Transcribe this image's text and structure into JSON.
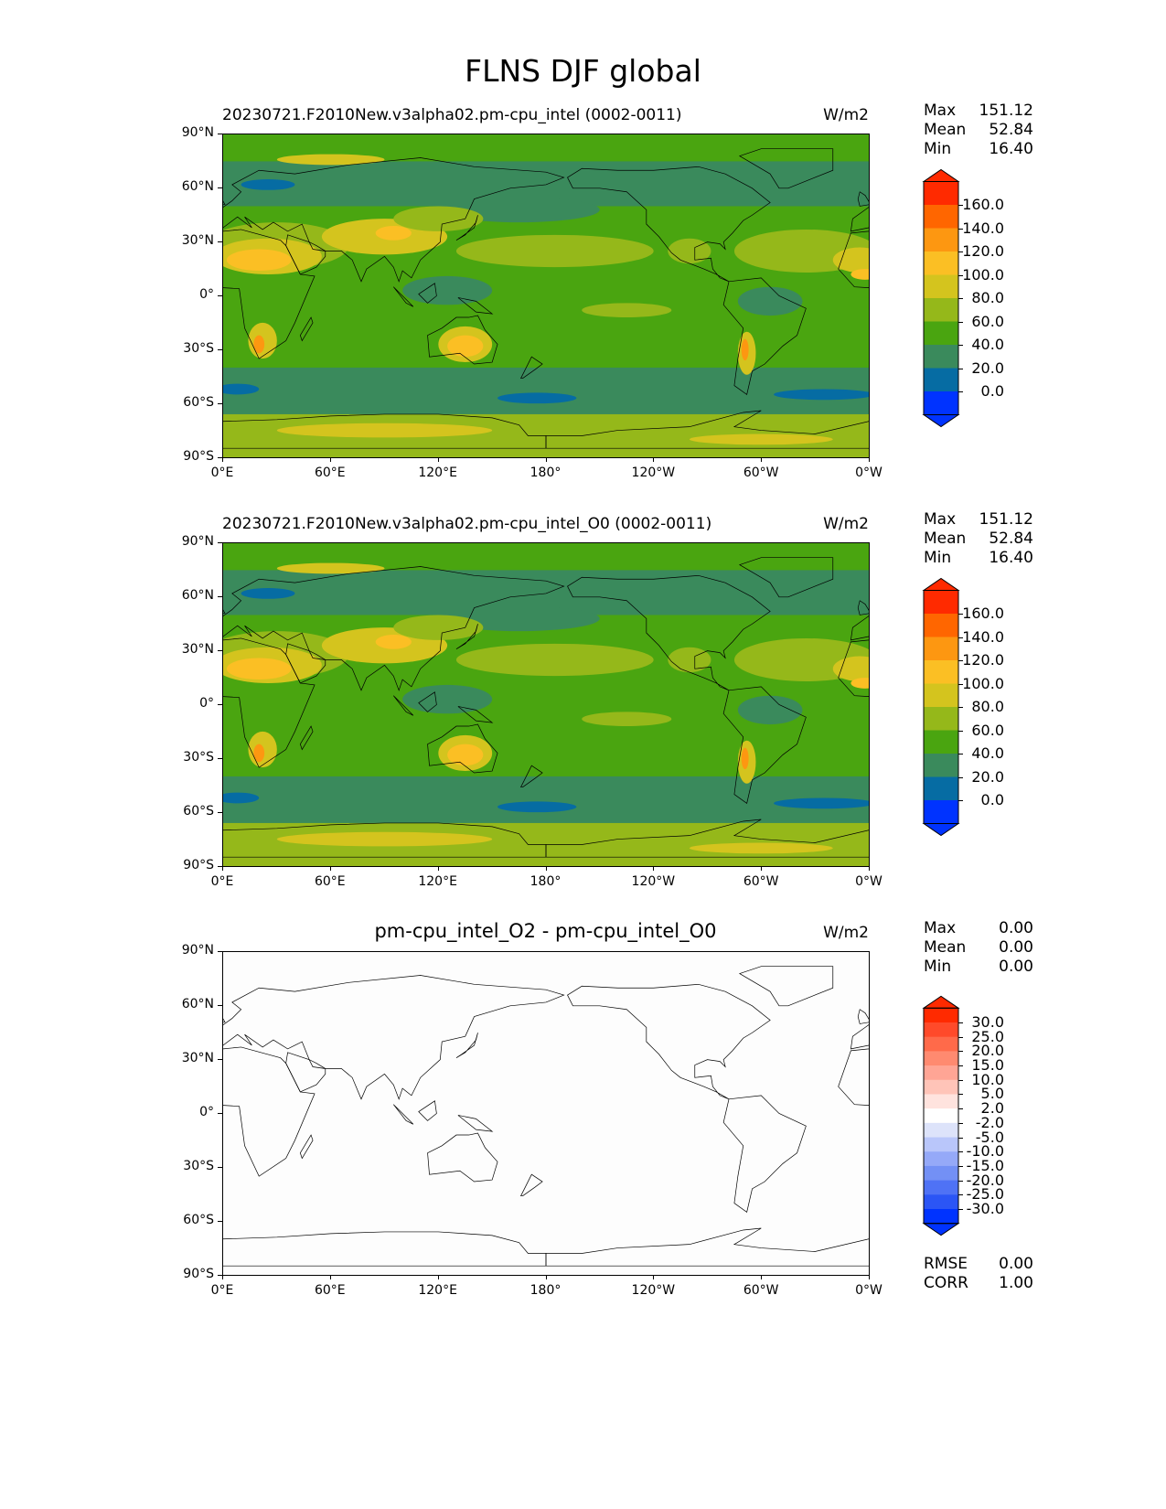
{
  "chart_data": {
    "type": "heatmap",
    "title": "FLNS DJF global",
    "x_ticks": [
      "0°E",
      "60°E",
      "120°E",
      "180°",
      "120°W",
      "60°W",
      "0°W"
    ],
    "y_ticks": [
      "90°N",
      "60°N",
      "30°N",
      "0°",
      "30°S",
      "60°S",
      "90°S"
    ],
    "xlim": [
      0,
      360
    ],
    "ylim": [
      -90,
      90
    ],
    "colorbars": {
      "field": {
        "labels": [
          "160.0",
          "140.0",
          "120.0",
          "100.0",
          "80.0",
          "60.0",
          "40.0",
          "20.0",
          "0.0"
        ],
        "colors": [
          "#ff2a00",
          "#ff6600",
          "#fd9711",
          "#fbbf24",
          "#d4c41e",
          "#95b81a",
          "#4aa510",
          "#3a8a5c",
          "#066ca3",
          "#0033ff"
        ]
      },
      "diff": {
        "labels": [
          "30.0",
          "25.0",
          "20.0",
          "15.0",
          "10.0",
          "5.0",
          "2.0",
          "-2.0",
          "-5.0",
          "-10.0",
          "-15.0",
          "-20.0",
          "-25.0",
          "-30.0"
        ],
        "colors": [
          "#ff2a00",
          "#ff4a2a",
          "#ff6a4a",
          "#ff8a70",
          "#ffa595",
          "#ffc4b8",
          "#ffe3de",
          "#ffffff",
          "#dde3fa",
          "#b9c6fa",
          "#95a9f8",
          "#7390f5",
          "#4f72f5",
          "#2b55f5",
          "#0033ff"
        ]
      }
    },
    "panels": [
      {
        "title": "20230721.F2010New.v3alpha02.pm-cpu_intel (0002-0011)",
        "units": "W/m2",
        "field": "field",
        "stats": [
          {
            "label": "Max",
            "value": "151.12"
          },
          {
            "label": "Mean",
            "value": "52.84"
          },
          {
            "label": "Min",
            "value": "16.40"
          }
        ]
      },
      {
        "title": "20230721.F2010New.v3alpha02.pm-cpu_intel_O0 (0002-0011)",
        "units": "W/m2",
        "field": "field",
        "stats": [
          {
            "label": "Max",
            "value": "151.12"
          },
          {
            "label": "Mean",
            "value": "52.84"
          },
          {
            "label": "Min",
            "value": "16.40"
          }
        ]
      },
      {
        "title": "pm-cpu_intel_O2 - pm-cpu_intel_O0",
        "units": "W/m2",
        "field": "diff",
        "stats": [
          {
            "label": "Max",
            "value": "0.00"
          },
          {
            "label": "Mean",
            "value": "0.00"
          },
          {
            "label": "Min",
            "value": "0.00"
          }
        ],
        "extra_stats": [
          {
            "label": "RMSE",
            "value": "0.00"
          },
          {
            "label": "CORR",
            "value": "1.00"
          }
        ]
      }
    ]
  }
}
